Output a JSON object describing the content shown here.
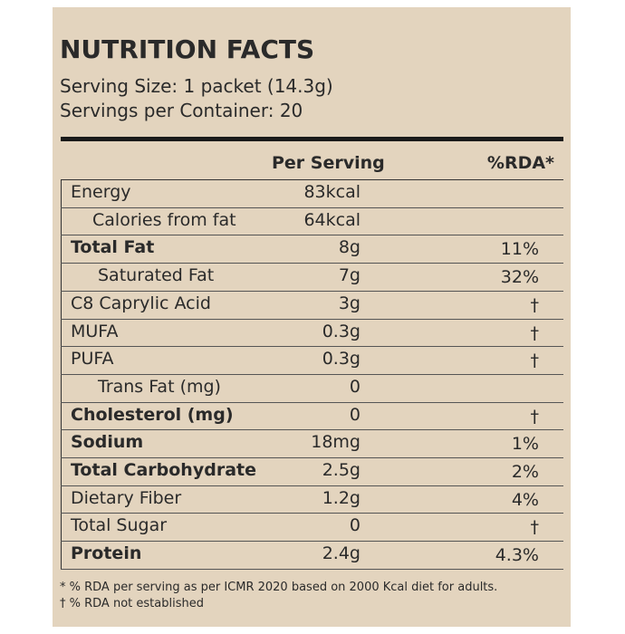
{
  "header": {
    "title": "NUTRITION FACTS",
    "serving_size": "Serving Size: 1 packet (14.3g)",
    "servings_per_container": "Servings per Container: 20"
  },
  "table": {
    "columns": [
      "Per Serving",
      "%RDA*"
    ],
    "rows": [
      [
        "Energy",
        "83kcal"
      ],
      [
        "Calories from fat",
        "64kcal"
      ],
      [
        "Total Fat",
        "8g",
        "11%"
      ],
      [
        "Saturated Fat",
        "7g",
        "32%"
      ],
      [
        "C8 Caprylic Acid",
        "3g",
        "†"
      ],
      [
        "MUFA",
        "0.3g",
        "†"
      ],
      [
        "PUFA",
        "0.3g",
        "†"
      ],
      [
        "Trans Fat (mg)",
        "0"
      ],
      [
        "Cholesterol (mg)",
        "0",
        "†"
      ],
      [
        "Sodium",
        "18mg",
        "1%"
      ],
      [
        "Total Carbohydrate",
        "2.5g",
        "2%"
      ],
      [
        "Dietary Fiber",
        "1.2g",
        "4%"
      ],
      [
        "Total Sugar",
        "0",
        "†"
      ],
      [
        "Protein",
        "2.4g",
        "4.3%"
      ]
    ]
  },
  "footnotes": [
    "* % RDA per serving as per ICMR 2020 based on 2000 Kcal diet for adults.",
    "† % RDA not established"
  ]
}
